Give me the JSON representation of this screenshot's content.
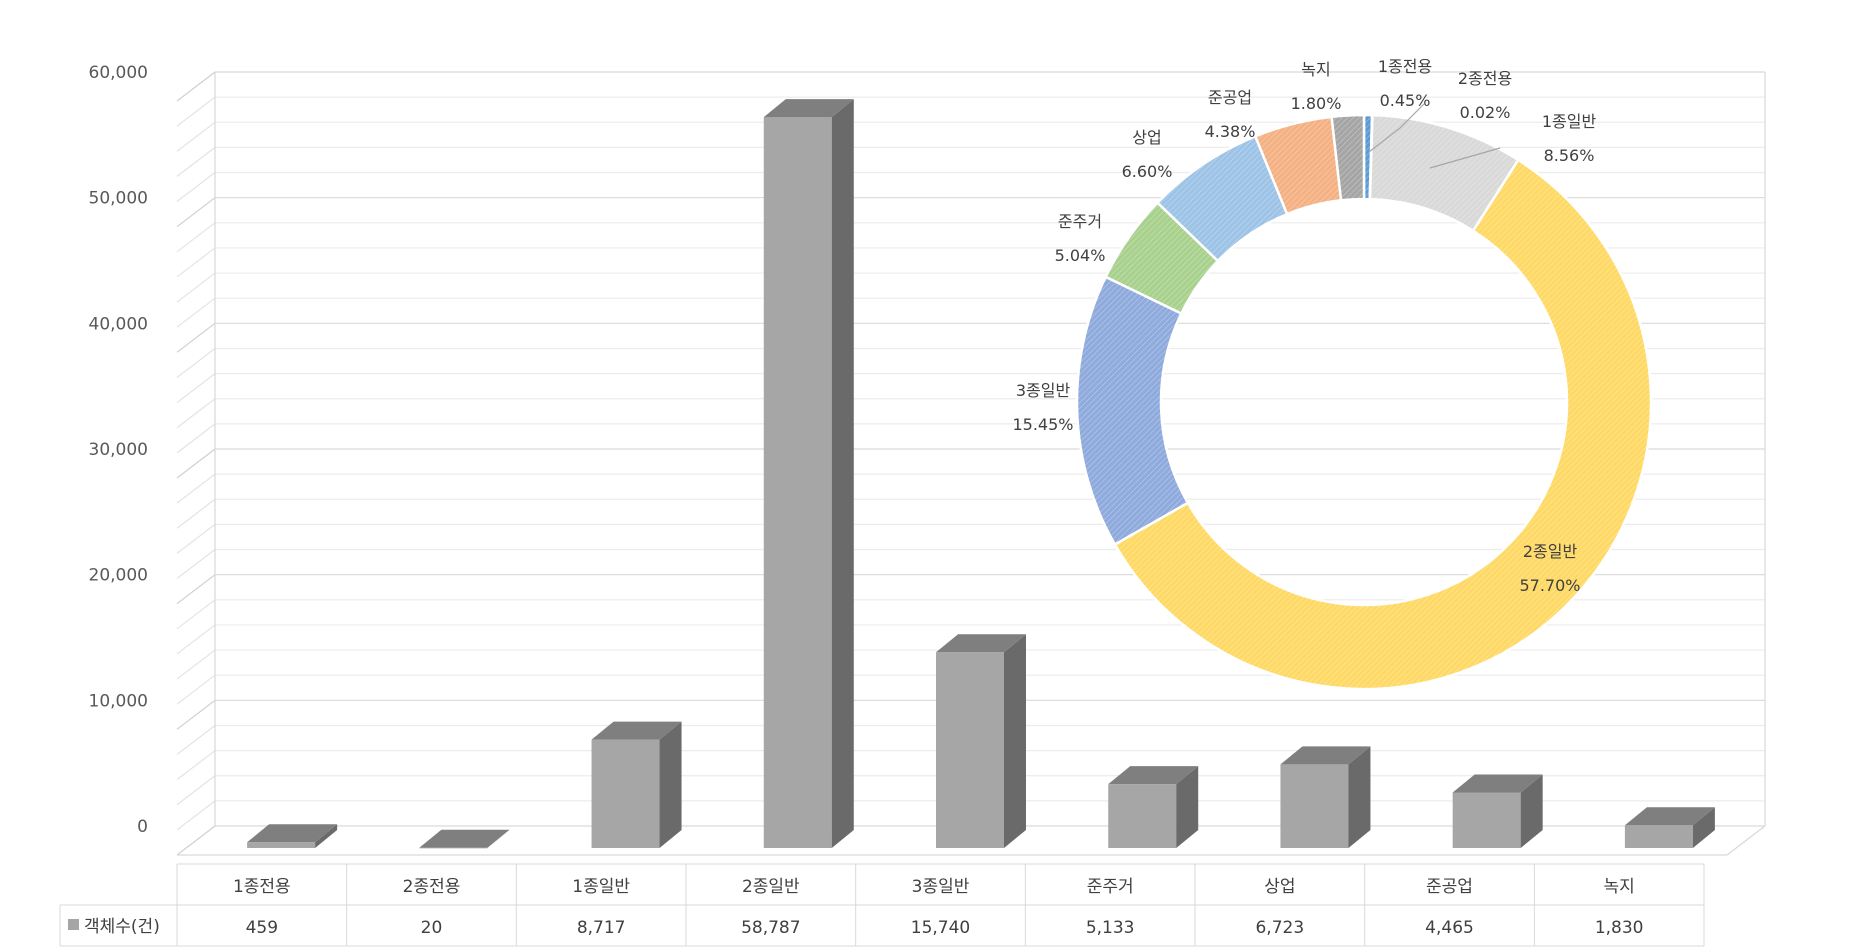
{
  "chart_data": [
    {
      "type": "bar",
      "style": "3d-column",
      "categories": [
        "1종전용",
        "2종전용",
        "1종일반",
        "2종일반",
        "3종일반",
        "준주거",
        "상업",
        "준공업",
        "녹지"
      ],
      "series": [
        {
          "name": "객체수(건)",
          "values": [
            459,
            20,
            8717,
            58787,
            15740,
            5133,
            6723,
            4465,
            1830
          ],
          "color": "#a6a6a6"
        }
      ],
      "ylim": [
        0,
        60000
      ],
      "yticks": [
        "0",
        "10,000",
        "20,000",
        "30,000",
        "40,000",
        "50,000",
        "60,000"
      ],
      "grid": true,
      "data_table": true
    },
    {
      "type": "pie",
      "style": "doughnut",
      "slices": [
        {
          "label": "1종전용",
          "value_label": "0.45%",
          "value": 0.45,
          "color": "#5b9bd5"
        },
        {
          "label": "2종전용",
          "value_label": "0.02%",
          "value": 0.02,
          "color": "#ed7d31"
        },
        {
          "label": "1종일반",
          "value_label": "8.56%",
          "value": 8.56,
          "color": "#d9d9d9"
        },
        {
          "label": "2종일반",
          "value_label": "57.70%",
          "value": 57.7,
          "color": "#ffd966"
        },
        {
          "label": "3종일반",
          "value_label": "15.45%",
          "value": 15.45,
          "color": "#8faadc"
        },
        {
          "label": "준주거",
          "value_label": "5.04%",
          "value": 5.04,
          "color": "#a9d18e"
        },
        {
          "label": "상업",
          "value_label": "6.60%",
          "value": 6.6,
          "color": "#9dc3e6"
        },
        {
          "label": "준공업",
          "value_label": "4.38%",
          "value": 4.38,
          "color": "#f4b183"
        },
        {
          "label": "녹지",
          "value_label": "1.80%",
          "value": 1.8,
          "color": "#a5a5a5"
        }
      ]
    }
  ]
}
